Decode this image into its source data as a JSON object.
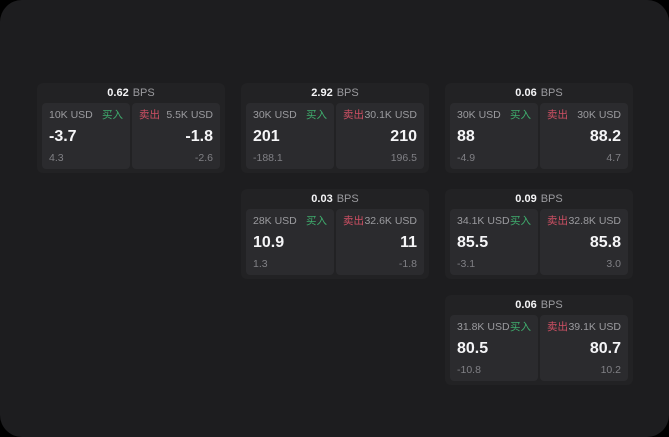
{
  "labels": {
    "bps_unit": "BPS",
    "buy": "买入",
    "sell": "卖出"
  },
  "colors": {
    "panel_bg": "#1d1d1f",
    "card_bg": "#222224",
    "tile_bg": "#2b2b2e",
    "buy_green": "#3fae6e",
    "sell_red": "#cf5064",
    "label_gray": "#9b9b9f",
    "sub_gray": "#808085",
    "value_white": "#f5f5f7"
  },
  "cards": [
    {
      "bps": "0.62",
      "buy": {
        "size": "10K USD",
        "price": "-3.7",
        "sub": "4.3"
      },
      "sell": {
        "size": "5.5K USD",
        "price": "-1.8",
        "sub": "-2.6"
      }
    },
    {
      "bps": "2.92",
      "buy": {
        "size": "30K USD",
        "price": "201",
        "sub": "-188.1"
      },
      "sell": {
        "size": "30.1K USD",
        "price": "210",
        "sub": "196.5"
      }
    },
    {
      "bps": "0.06",
      "buy": {
        "size": "30K USD",
        "price": "88",
        "sub": "-4.9"
      },
      "sell": {
        "size": "30K USD",
        "price": "88.2",
        "sub": "4.7"
      }
    },
    {
      "bps": "0.03",
      "buy": {
        "size": "28K USD",
        "price": "10.9",
        "sub": "1.3"
      },
      "sell": {
        "size": "32.6K USD",
        "price": "11",
        "sub": "-1.8"
      }
    },
    {
      "bps": "0.09",
      "buy": {
        "size": "34.1K USD",
        "price": "85.5",
        "sub": "-3.1"
      },
      "sell": {
        "size": "32.8K USD",
        "price": "85.8",
        "sub": "3.0"
      }
    },
    {
      "bps": "0.06",
      "buy": {
        "size": "31.8K USD",
        "price": "80.5",
        "sub": "-10.8"
      },
      "sell": {
        "size": "39.1K USD",
        "price": "80.7",
        "sub": "10.2"
      }
    }
  ]
}
